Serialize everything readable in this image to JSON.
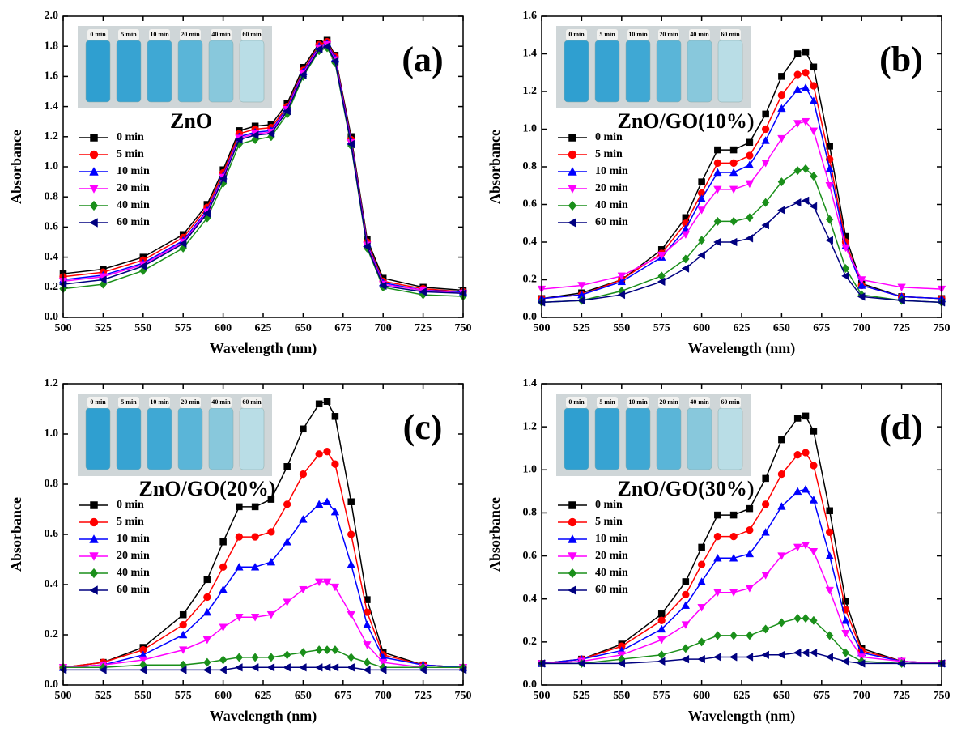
{
  "chart_data": [
    {
      "type": "line",
      "annotation": "(a)",
      "inset_caption": "ZnO",
      "inset_labels": [
        "0 min",
        "5 min",
        "10 min",
        "20 min",
        "40 min",
        "60 min"
      ],
      "x_label": "Wavelength (nm)",
      "y_label": "Absorbance",
      "x": [
        500,
        525,
        550,
        575,
        590,
        600,
        610,
        620,
        630,
        640,
        650,
        660,
        665,
        670,
        680,
        690,
        700,
        725,
        750
      ],
      "xlim": [
        500,
        750
      ],
      "xticks": [
        500,
        525,
        550,
        575,
        600,
        625,
        650,
        675,
        700,
        725,
        750
      ],
      "ylim": [
        0,
        2
      ],
      "yticks": [
        {
          "value": 0,
          "label": "0.0"
        },
        0.2,
        0.4,
        0.6,
        0.8,
        {
          "value": 1,
          "label": "1.0"
        },
        1.2,
        1.4,
        1.6,
        1.8,
        {
          "value": 2,
          "label": "2.0"
        }
      ],
      "legend": "left",
      "series": [
        {
          "name": "0 min",
          "color": "#000000",
          "marker": "square",
          "values": [
            0.29,
            0.32,
            0.4,
            0.55,
            0.75,
            0.98,
            1.24,
            1.27,
            1.28,
            1.42,
            1.66,
            1.82,
            1.84,
            1.74,
            1.2,
            0.52,
            0.26,
            0.2,
            0.18
          ]
        },
        {
          "name": "5 min",
          "color": "#ff0000",
          "marker": "circle",
          "values": [
            0.27,
            0.3,
            0.38,
            0.53,
            0.73,
            0.96,
            1.22,
            1.25,
            1.26,
            1.4,
            1.64,
            1.81,
            1.83,
            1.73,
            1.18,
            0.5,
            0.24,
            0.19,
            0.17
          ]
        },
        {
          "name": "10 min",
          "color": "#0000ff",
          "marker": "up",
          "values": [
            0.25,
            0.28,
            0.36,
            0.51,
            0.71,
            0.94,
            1.2,
            1.23,
            1.24,
            1.39,
            1.63,
            1.8,
            1.82,
            1.72,
            1.17,
            0.49,
            0.23,
            0.18,
            0.17
          ]
        },
        {
          "name": "20 min",
          "color": "#ff00ff",
          "marker": "down",
          "values": [
            0.24,
            0.27,
            0.35,
            0.5,
            0.7,
            0.93,
            1.19,
            1.22,
            1.23,
            1.38,
            1.62,
            1.79,
            1.81,
            1.71,
            1.16,
            0.48,
            0.22,
            0.18,
            0.16
          ]
        },
        {
          "name": "40 min",
          "color": "#1a8f1a",
          "marker": "diamond",
          "values": [
            0.19,
            0.22,
            0.31,
            0.46,
            0.66,
            0.89,
            1.15,
            1.18,
            1.2,
            1.35,
            1.6,
            1.77,
            1.79,
            1.69,
            1.14,
            0.46,
            0.2,
            0.15,
            0.14
          ]
        },
        {
          "name": "60 min",
          "color": "#000080",
          "marker": "left",
          "values": [
            0.22,
            0.25,
            0.34,
            0.49,
            0.69,
            0.92,
            1.18,
            1.21,
            1.22,
            1.37,
            1.61,
            1.78,
            1.8,
            1.7,
            1.15,
            0.47,
            0.21,
            0.17,
            0.16
          ]
        }
      ]
    },
    {
      "type": "line",
      "annotation": "(b)",
      "inset_caption": "ZnO/GO(10%)",
      "inset_labels": [
        "0 min",
        "5 min",
        "10 min",
        "20 min",
        "40 min",
        "60 min"
      ],
      "x_label": "Wavelength (nm)",
      "y_label": "Absorbance",
      "x": [
        500,
        525,
        550,
        575,
        590,
        600,
        610,
        620,
        630,
        640,
        650,
        660,
        665,
        670,
        680,
        690,
        700,
        725,
        750
      ],
      "xlim": [
        500,
        750
      ],
      "xticks": [
        500,
        525,
        550,
        575,
        600,
        625,
        650,
        675,
        700,
        725,
        750
      ],
      "ylim": [
        0,
        1.6
      ],
      "yticks": [
        {
          "value": 0,
          "label": "0.0"
        },
        0.2,
        0.4,
        0.6,
        0.8,
        {
          "value": 1,
          "label": "1.0"
        },
        1.2,
        1.4,
        1.6
      ],
      "legend": "left",
      "series": [
        {
          "name": "0 min",
          "color": "#000000",
          "marker": "square",
          "values": [
            0.1,
            0.13,
            0.2,
            0.36,
            0.53,
            0.72,
            0.89,
            0.89,
            0.93,
            1.08,
            1.28,
            1.4,
            1.41,
            1.33,
            0.91,
            0.43,
            0.18,
            0.11,
            0.1
          ]
        },
        {
          "name": "5 min",
          "color": "#ff0000",
          "marker": "circle",
          "values": [
            0.1,
            0.12,
            0.2,
            0.34,
            0.5,
            0.66,
            0.82,
            0.82,
            0.86,
            1.0,
            1.18,
            1.29,
            1.3,
            1.23,
            0.84,
            0.4,
            0.17,
            0.11,
            0.1
          ]
        },
        {
          "name": "10 min",
          "color": "#0000ff",
          "marker": "up",
          "values": [
            0.1,
            0.12,
            0.19,
            0.32,
            0.47,
            0.63,
            0.77,
            0.77,
            0.81,
            0.94,
            1.11,
            1.21,
            1.22,
            1.15,
            0.79,
            0.38,
            0.17,
            0.11,
            0.1
          ]
        },
        {
          "name": "20 min",
          "color": "#ff00ff",
          "marker": "down",
          "values": [
            0.15,
            0.17,
            0.22,
            0.33,
            0.44,
            0.57,
            0.68,
            0.68,
            0.71,
            0.82,
            0.95,
            1.03,
            1.04,
            0.99,
            0.7,
            0.37,
            0.2,
            0.16,
            0.15
          ]
        },
        {
          "name": "40 min",
          "color": "#1a8f1a",
          "marker": "diamond",
          "values": [
            0.08,
            0.09,
            0.14,
            0.22,
            0.31,
            0.41,
            0.51,
            0.51,
            0.53,
            0.61,
            0.72,
            0.78,
            0.79,
            0.75,
            0.52,
            0.26,
            0.12,
            0.09,
            0.08
          ]
        },
        {
          "name": "60 min",
          "color": "#000080",
          "marker": "left",
          "values": [
            0.08,
            0.09,
            0.12,
            0.19,
            0.26,
            0.33,
            0.4,
            0.4,
            0.42,
            0.49,
            0.57,
            0.61,
            0.62,
            0.59,
            0.41,
            0.22,
            0.11,
            0.09,
            0.08
          ]
        }
      ]
    },
    {
      "type": "line",
      "annotation": "(c)",
      "inset_caption": "ZnO/GO(20%)",
      "inset_labels": [
        "0 min",
        "5 min",
        "10 min",
        "20 min",
        "40 min",
        "60 min"
      ],
      "x_label": "Wavelength (nm)",
      "y_label": "Absorbance",
      "x": [
        500,
        525,
        550,
        575,
        590,
        600,
        610,
        620,
        630,
        640,
        650,
        660,
        665,
        670,
        680,
        690,
        700,
        725,
        750
      ],
      "xlim": [
        500,
        750
      ],
      "xticks": [
        500,
        525,
        550,
        575,
        600,
        625,
        650,
        675,
        700,
        725,
        750
      ],
      "ylim": [
        0,
        1.2
      ],
      "yticks": [
        {
          "value": 0,
          "label": "0.0"
        },
        0.2,
        0.4,
        0.6,
        0.8,
        {
          "value": 1,
          "label": "1.0"
        },
        1.2
      ],
      "legend": "left",
      "series": [
        {
          "name": "0 min",
          "color": "#000000",
          "marker": "square",
          "values": [
            0.07,
            0.09,
            0.15,
            0.28,
            0.42,
            0.57,
            0.71,
            0.71,
            0.74,
            0.87,
            1.02,
            1.12,
            1.13,
            1.07,
            0.73,
            0.34,
            0.13,
            0.08,
            0.07
          ]
        },
        {
          "name": "5 min",
          "color": "#ff0000",
          "marker": "circle",
          "values": [
            0.07,
            0.09,
            0.14,
            0.24,
            0.35,
            0.47,
            0.59,
            0.59,
            0.61,
            0.72,
            0.84,
            0.92,
            0.93,
            0.88,
            0.6,
            0.29,
            0.12,
            0.08,
            0.07
          ]
        },
        {
          "name": "10 min",
          "color": "#0000ff",
          "marker": "up",
          "values": [
            0.07,
            0.08,
            0.12,
            0.2,
            0.29,
            0.38,
            0.47,
            0.47,
            0.49,
            0.57,
            0.66,
            0.72,
            0.73,
            0.69,
            0.48,
            0.24,
            0.11,
            0.08,
            0.07
          ]
        },
        {
          "name": "20 min",
          "color": "#ff00ff",
          "marker": "down",
          "values": [
            0.07,
            0.08,
            0.1,
            0.14,
            0.18,
            0.23,
            0.27,
            0.27,
            0.28,
            0.33,
            0.38,
            0.41,
            0.41,
            0.39,
            0.28,
            0.16,
            0.09,
            0.07,
            0.07
          ]
        },
        {
          "name": "40 min",
          "color": "#1a8f1a",
          "marker": "diamond",
          "values": [
            0.07,
            0.07,
            0.08,
            0.08,
            0.09,
            0.1,
            0.11,
            0.11,
            0.11,
            0.12,
            0.13,
            0.14,
            0.14,
            0.14,
            0.11,
            0.09,
            0.07,
            0.07,
            0.07
          ]
        },
        {
          "name": "60 min",
          "color": "#000080",
          "marker": "left",
          "values": [
            0.06,
            0.06,
            0.06,
            0.06,
            0.06,
            0.06,
            0.07,
            0.07,
            0.07,
            0.07,
            0.07,
            0.07,
            0.07,
            0.07,
            0.07,
            0.06,
            0.06,
            0.06,
            0.06
          ]
        }
      ]
    },
    {
      "type": "line",
      "annotation": "(d)",
      "inset_caption": "ZnO/GO(30%)",
      "inset_labels": [
        "0 min",
        "5 min",
        "10 min",
        "20 min",
        "40 min",
        "60 min"
      ],
      "x_label": "Wavelength (nm)",
      "y_label": "Absorbance",
      "x": [
        500,
        525,
        550,
        575,
        590,
        600,
        610,
        620,
        630,
        640,
        650,
        660,
        665,
        670,
        680,
        690,
        700,
        725,
        750
      ],
      "xlim": [
        500,
        750
      ],
      "xticks": [
        500,
        525,
        550,
        575,
        600,
        625,
        650,
        675,
        700,
        725,
        750
      ],
      "ylim": [
        0,
        1.4
      ],
      "yticks": [
        {
          "value": 0,
          "label": "0.0"
        },
        0.2,
        0.4,
        0.6,
        0.8,
        {
          "value": 1,
          "label": "1.0"
        },
        1.2,
        1.4
      ],
      "legend": "left",
      "series": [
        {
          "name": "0 min",
          "color": "#000000",
          "marker": "square",
          "values": [
            0.1,
            0.12,
            0.19,
            0.33,
            0.48,
            0.64,
            0.79,
            0.79,
            0.82,
            0.96,
            1.14,
            1.24,
            1.25,
            1.18,
            0.81,
            0.39,
            0.17,
            0.11,
            0.1
          ]
        },
        {
          "name": "5 min",
          "color": "#ff0000",
          "marker": "circle",
          "values": [
            0.1,
            0.12,
            0.18,
            0.3,
            0.42,
            0.56,
            0.69,
            0.69,
            0.72,
            0.84,
            0.98,
            1.07,
            1.08,
            1.02,
            0.71,
            0.35,
            0.16,
            0.11,
            0.1
          ]
        },
        {
          "name": "10 min",
          "color": "#0000ff",
          "marker": "up",
          "values": [
            0.1,
            0.12,
            0.16,
            0.26,
            0.37,
            0.48,
            0.59,
            0.59,
            0.61,
            0.71,
            0.83,
            0.9,
            0.91,
            0.86,
            0.6,
            0.3,
            0.15,
            0.11,
            0.1
          ]
        },
        {
          "name": "20 min",
          "color": "#ff00ff",
          "marker": "down",
          "values": [
            0.1,
            0.11,
            0.14,
            0.21,
            0.28,
            0.36,
            0.43,
            0.43,
            0.45,
            0.51,
            0.6,
            0.64,
            0.65,
            0.62,
            0.44,
            0.24,
            0.13,
            0.11,
            0.1
          ]
        },
        {
          "name": "40 min",
          "color": "#1a8f1a",
          "marker": "diamond",
          "values": [
            0.1,
            0.1,
            0.12,
            0.14,
            0.17,
            0.2,
            0.23,
            0.23,
            0.23,
            0.26,
            0.29,
            0.31,
            0.31,
            0.3,
            0.23,
            0.15,
            0.11,
            0.1,
            0.1
          ]
        },
        {
          "name": "60 min",
          "color": "#000080",
          "marker": "left",
          "values": [
            0.1,
            0.1,
            0.1,
            0.11,
            0.12,
            0.12,
            0.13,
            0.13,
            0.13,
            0.14,
            0.14,
            0.15,
            0.15,
            0.15,
            0.13,
            0.11,
            0.1,
            0.1,
            0.1
          ]
        }
      ]
    }
  ]
}
